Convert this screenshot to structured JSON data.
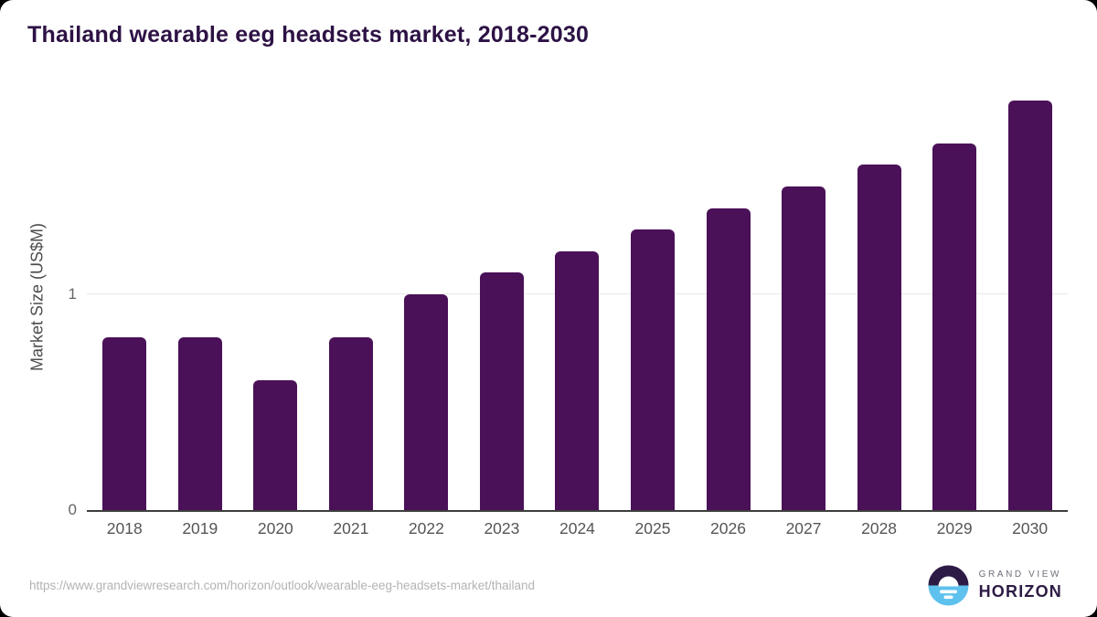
{
  "chart_data": {
    "type": "bar",
    "title": "Thailand wearable eeg headsets market, 2018-2030",
    "categories": [
      "2018",
      "2019",
      "2020",
      "2021",
      "2022",
      "2023",
      "2024",
      "2025",
      "2026",
      "2027",
      "2028",
      "2029",
      "2030"
    ],
    "values": [
      0.8,
      0.8,
      0.6,
      0.8,
      1.0,
      1.1,
      1.2,
      1.3,
      1.4,
      1.5,
      1.6,
      1.7,
      1.9
    ],
    "xlabel": "",
    "ylabel": "Market Size (US$M)",
    "ylim": [
      0,
      1.98
    ],
    "yticks": [
      0,
      1
    ],
    "legend": "none",
    "grid": "single horizontal gridline at y=1",
    "bar_color": "#4a1158"
  },
  "footer": {
    "source_url": "https://www.grandviewresearch.com/horizon/outlook/wearable-eeg-headsets-market/thailand",
    "logo": {
      "top_text": "GRAND VIEW",
      "bottom_text": "HORIZON"
    }
  },
  "colors": {
    "title": "#2d1245",
    "bar": "#4a1158",
    "axis_line": "#3d3d3d",
    "gridline": "#e8e8e8",
    "tick_label": "#666666",
    "x_label": "#555555",
    "y_axis_title": "#4d4d4d",
    "source_text": "#b3b3b3",
    "logo_purple": "#2d1b45",
    "logo_blue": "#5ec1ee",
    "card_bg": "#ffffff",
    "outside_bg": "#000000"
  }
}
